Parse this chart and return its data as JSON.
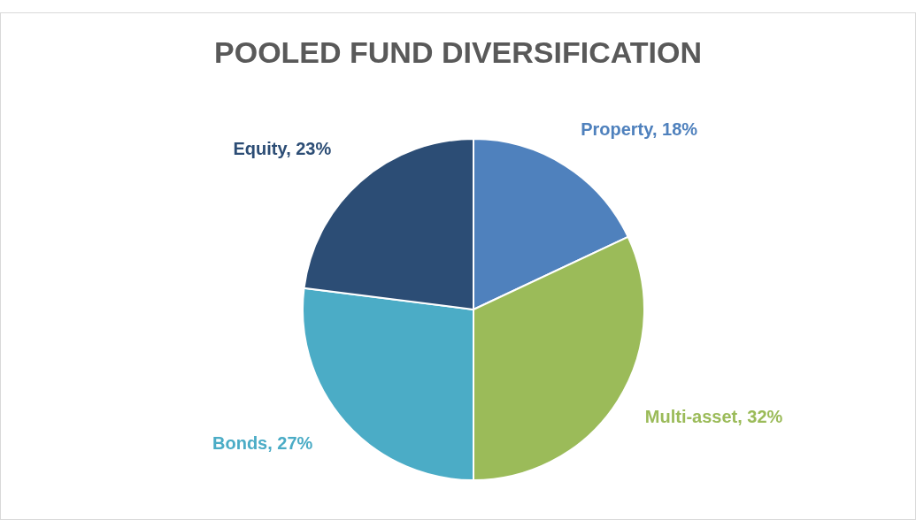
{
  "chart_data": {
    "type": "pie",
    "title": "POOLED FUND DIVERSIFICATION",
    "categories": [
      "Property",
      "Multi-asset",
      "Bonds",
      "Equity"
    ],
    "values": [
      18,
      32,
      27,
      23
    ],
    "value_labels": [
      "18%",
      "32%",
      "27%",
      "23%"
    ],
    "colors": [
      "#4f81bd",
      "#9bbb59",
      "#4bacc6",
      "#2c4d75"
    ],
    "legend": false
  }
}
